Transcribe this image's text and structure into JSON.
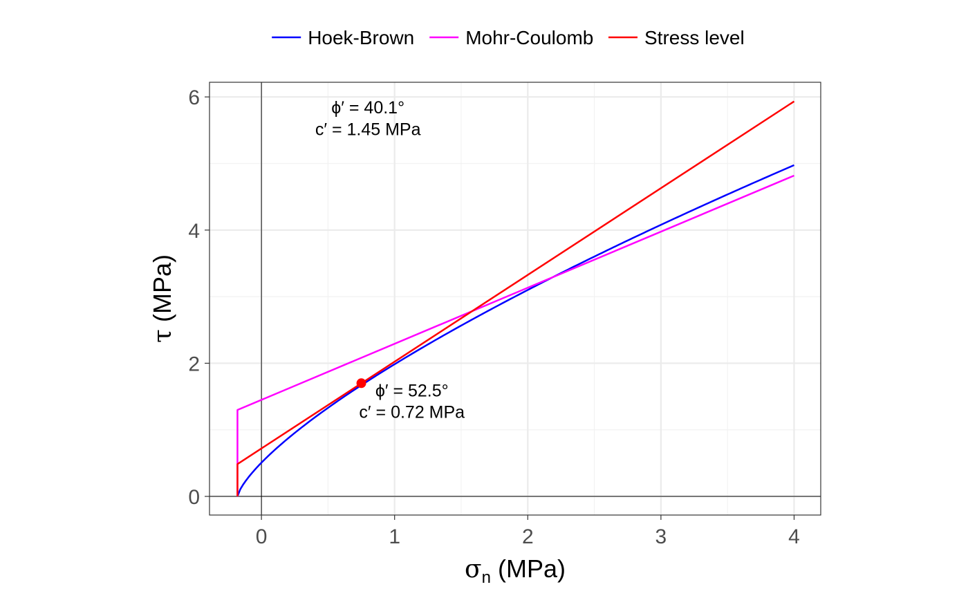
{
  "chart_data": {
    "type": "line",
    "x_label": {
      "symbol": "σ",
      "subscript": "n",
      "unit": " (MPa)"
    },
    "y_label": {
      "symbol": "τ",
      "unit": " (MPa)"
    },
    "xlim": [
      -0.39,
      4.2
    ],
    "ylim": [
      -0.28,
      6.22
    ],
    "x_ticks": [
      0,
      1,
      2,
      3,
      4
    ],
    "y_ticks": [
      0,
      2,
      4,
      6
    ],
    "x_minor_grid": [
      0.5,
      1.5,
      2.5,
      3.5
    ],
    "y_minor_grid": [
      1,
      3,
      5
    ],
    "grid": true,
    "legend_position": "top",
    "series": [
      {
        "name": "Hoek-Brown",
        "color": "#0000ff",
        "style": "curve",
        "sigma_t": -0.18,
        "x_end": 4.0,
        "points": [
          [
            -0.18,
            0.0
          ],
          [
            0.0,
            0.5
          ],
          [
            0.75,
            1.7
          ],
          [
            1.5,
            2.6
          ],
          [
            2.0,
            3.12
          ],
          [
            3.0,
            4.05
          ],
          [
            4.0,
            4.89
          ]
        ]
      },
      {
        "name": "Mohr-Coulomb",
        "color": "#ff00ff",
        "style": "linear",
        "cohesion": 1.45,
        "phi_deg": 40.1,
        "x_start": -0.18,
        "x_end": 4.0
      },
      {
        "name": "Stress level",
        "color": "#ff0000",
        "style": "linear",
        "cohesion": 0.72,
        "phi_deg": 52.5,
        "x_start": -0.18,
        "x_end": 4.0
      }
    ],
    "point": {
      "x": 0.75,
      "y": 1.7,
      "color": "#ff0000"
    },
    "annotations": [
      {
        "line1": "ϕ′ = 40.1°",
        "line2": "c′ = 1.45 MPa",
        "x": 0.8,
        "y": 5.7
      },
      {
        "line1": "ϕ′ = 52.5°",
        "line2": "c′ = 0.72 MPa",
        "x": 1.13,
        "y": 1.45
      }
    ],
    "reference_lines": {
      "x": 0,
      "y": 0
    }
  }
}
